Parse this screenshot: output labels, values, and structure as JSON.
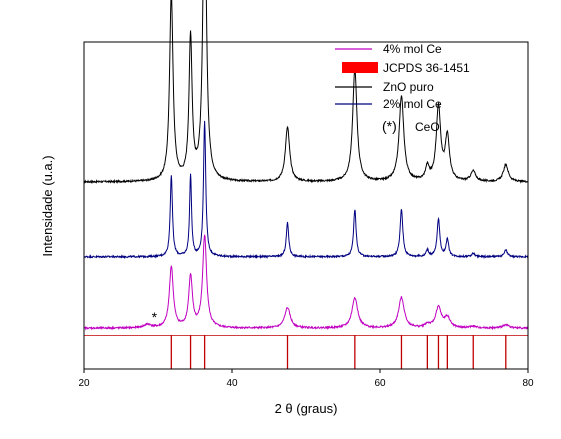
{
  "chart_data": {
    "type": "line",
    "xlabel": "2 θ (graus)",
    "ylabel": "Intensidade (u.a.)",
    "xlim": [
      20,
      80
    ],
    "xticks": [
      20,
      40,
      60,
      80
    ],
    "y_ticks_shown": false,
    "legend_position": "top-right",
    "legend": [
      {
        "label": "4% mol Ce",
        "color": "#c000c0",
        "kind": "line"
      },
      {
        "label": "JCPDS 36-1451",
        "color": "#ff0000",
        "kind": "patch"
      },
      {
        "label": "ZnO puro",
        "color": "#000000",
        "kind": "line"
      },
      {
        "label": "2% mol Ce",
        "color": "#000080",
        "kind": "line"
      },
      {
        "label": "(*)",
        "extra": "CeO",
        "color": "#000000",
        "kind": "text"
      }
    ],
    "annotation": {
      "text": "*",
      "x": 29.5,
      "note_series": "4% mol Ce"
    },
    "reference_lines": {
      "name": "JCPDS 36-1451",
      "color": "#c00000",
      "positions": [
        31.8,
        34.4,
        36.3,
        47.5,
        56.6,
        62.9,
        66.4,
        67.9,
        69.1,
        72.6,
        77.0
      ]
    },
    "series": [
      {
        "name": "ZnO puro",
        "color": "#000000",
        "baseline": 0.55,
        "peaks": [
          [
            31.8,
            0.55,
            0.28
          ],
          [
            34.4,
            0.42,
            0.25
          ],
          [
            36.3,
            0.9,
            0.28
          ],
          [
            47.5,
            0.16,
            0.35
          ],
          [
            56.6,
            0.33,
            0.35
          ],
          [
            62.9,
            0.25,
            0.38
          ],
          [
            66.4,
            0.04,
            0.3
          ],
          [
            67.9,
            0.22,
            0.35
          ],
          [
            69.1,
            0.13,
            0.35
          ],
          [
            72.6,
            0.03,
            0.4
          ],
          [
            77.0,
            0.05,
            0.4
          ]
        ]
      },
      {
        "name": "2% mol Ce",
        "color": "#000080",
        "baseline": 0.33,
        "peaks": [
          [
            31.8,
            0.24,
            0.18
          ],
          [
            34.4,
            0.24,
            0.16
          ],
          [
            36.3,
            0.4,
            0.18
          ],
          [
            47.5,
            0.1,
            0.2
          ],
          [
            56.6,
            0.14,
            0.2
          ],
          [
            62.9,
            0.14,
            0.22
          ],
          [
            66.4,
            0.02,
            0.2
          ],
          [
            67.9,
            0.11,
            0.22
          ],
          [
            69.1,
            0.05,
            0.22
          ],
          [
            72.6,
            0.01,
            0.25
          ],
          [
            77.0,
            0.02,
            0.25
          ]
        ]
      },
      {
        "name": "4% mol Ce",
        "color": "#c000c0",
        "baseline": 0.12,
        "peaks": [
          [
            28.6,
            0.01,
            0.6
          ],
          [
            31.8,
            0.18,
            0.32
          ],
          [
            34.4,
            0.15,
            0.3
          ],
          [
            36.3,
            0.27,
            0.32
          ],
          [
            47.5,
            0.06,
            0.45
          ],
          [
            56.6,
            0.09,
            0.45
          ],
          [
            62.9,
            0.09,
            0.45
          ],
          [
            66.4,
            0.01,
            0.4
          ],
          [
            67.9,
            0.06,
            0.45
          ],
          [
            69.1,
            0.03,
            0.45
          ],
          [
            72.6,
            0.005,
            0.5
          ],
          [
            77.0,
            0.01,
            0.5
          ]
        ]
      }
    ]
  }
}
